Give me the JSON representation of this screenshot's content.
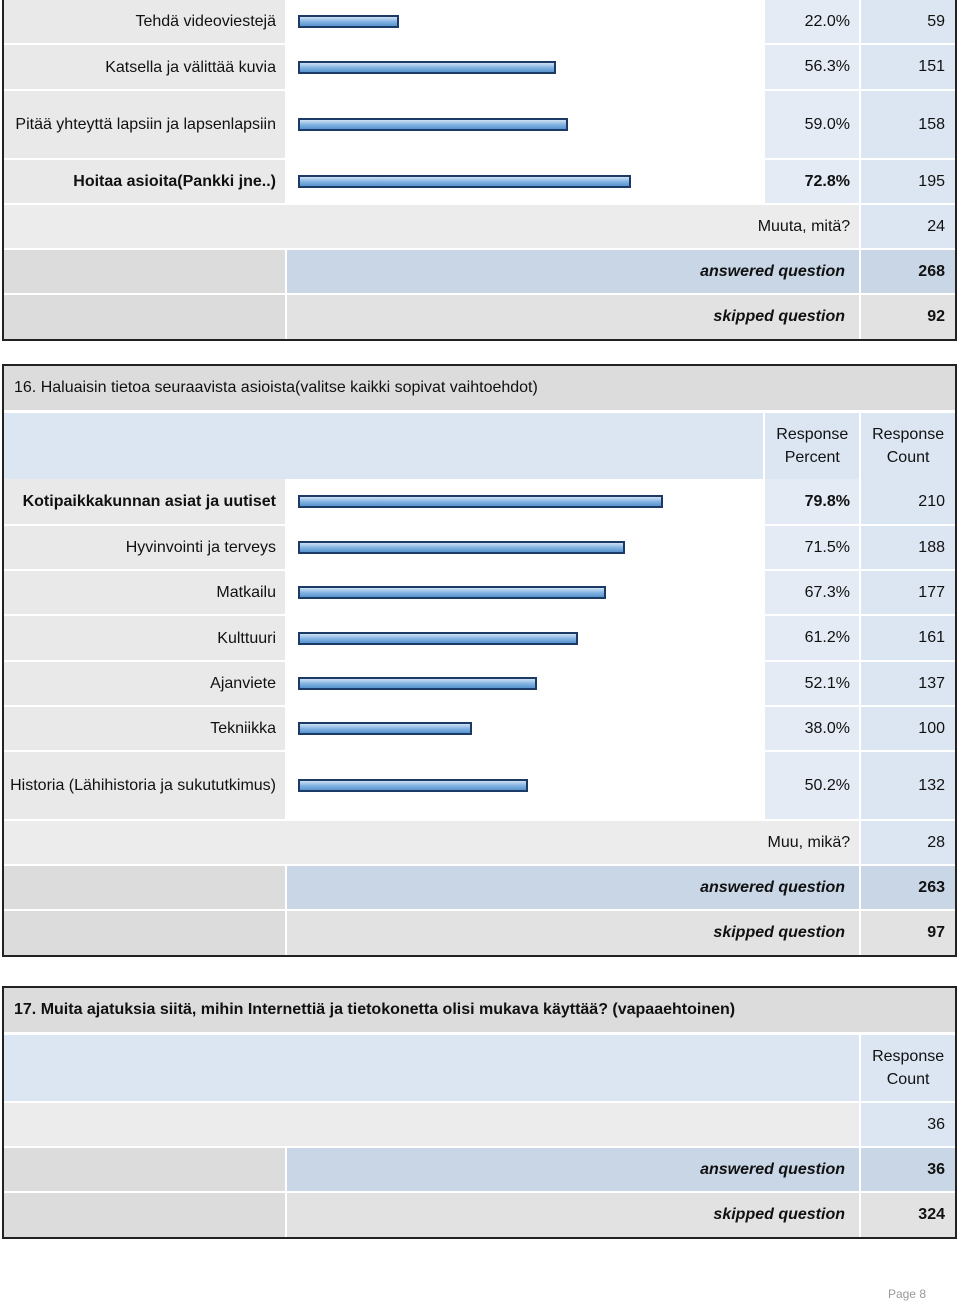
{
  "q15": {
    "rows": [
      {
        "label": "Tehdä videoviestejä",
        "pct": "22.0%",
        "count": "59",
        "value": 22.0,
        "bold": false
      },
      {
        "label": "Katsella ja välittää kuvia",
        "pct": "56.3%",
        "count": "151",
        "value": 56.3,
        "bold": false
      },
      {
        "label": "Pitää yhteyttä lapsiin ja lapsenlapsiin",
        "pct": "59.0%",
        "count": "158",
        "value": 59.0,
        "bold": false
      },
      {
        "label": "Hoitaa asioita(Pankki jne..)",
        "pct": "72.8%",
        "count": "195",
        "value": 72.8,
        "bold": true
      }
    ],
    "other_label": "Muuta, mitä?",
    "other_count": "24",
    "answered_label": "answered question",
    "answered": "268",
    "skipped_label": "skipped question",
    "skipped": "92"
  },
  "q16": {
    "title": "16. Haluaisin tietoa seuraavista asioista(valitse kaikki sopivat vaihtoehdot)",
    "header_percent": "Response Percent",
    "header_count": "Response Count",
    "rows": [
      {
        "label": "Kotipaikkakunnan asiat ja uutiset",
        "pct": "79.8%",
        "count": "210",
        "value": 79.8,
        "bold": true
      },
      {
        "label": "Hyvinvointi ja terveys",
        "pct": "71.5%",
        "count": "188",
        "value": 71.5,
        "bold": false
      },
      {
        "label": "Matkailu",
        "pct": "67.3%",
        "count": "177",
        "value": 67.3,
        "bold": false
      },
      {
        "label": "Kulttuuri",
        "pct": "61.2%",
        "count": "161",
        "value": 61.2,
        "bold": false
      },
      {
        "label": "Ajanviete",
        "pct": "52.1%",
        "count": "137",
        "value": 52.1,
        "bold": false
      },
      {
        "label": "Tekniikka",
        "pct": "38.0%",
        "count": "100",
        "value": 38.0,
        "bold": false
      },
      {
        "label": "Historia (Lähihistoria ja sukututkimus)",
        "pct": "50.2%",
        "count": "132",
        "value": 50.2,
        "bold": false
      }
    ],
    "other_label": "Muu, mikä?",
    "other_count": "28",
    "answered_label": "answered question",
    "answered": "263",
    "skipped_label": "skipped question",
    "skipped": "97"
  },
  "q17": {
    "title": "17. Muita ajatuksia siitä, mihin Internettiä ja tietokonetta olisi mukava käyttää? (vapaaehtoinen)",
    "header_count": "Response Count",
    "count": "36",
    "answered_label": "answered question",
    "answered": "36",
    "skipped_label": "skipped question",
    "skipped": "324"
  },
  "footer": "Page 8"
}
